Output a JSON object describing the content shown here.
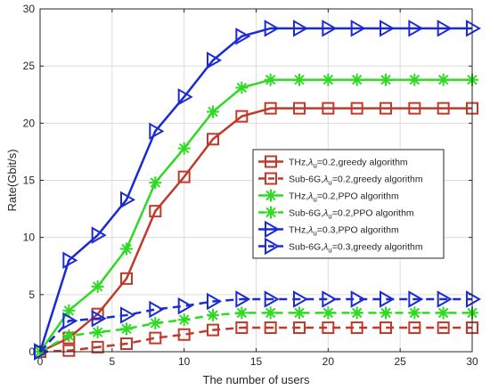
{
  "chart_data": {
    "type": "line",
    "xlabel": "The number of users",
    "ylabel": "Rate(Gbit/s)",
    "xlim": [
      0,
      30
    ],
    "ylim": [
      0,
      30
    ],
    "xticks": [
      "0",
      "5",
      "10",
      "15",
      "20",
      "25",
      "30"
    ],
    "yticks": [
      "0",
      "5",
      "10",
      "15",
      "20",
      "25",
      "30"
    ],
    "grid": true,
    "legend_position": "center-right",
    "x": [
      0,
      2,
      4,
      6,
      8,
      10,
      12,
      14,
      16,
      18,
      20,
      22,
      24,
      26,
      28,
      30
    ],
    "series": [
      {
        "name": "THz,λu=0.2,greedy algorithm",
        "legend": {
          "pre": "THz,",
          "sub": "u",
          "post": "=0.2,greedy algorithm"
        },
        "color": "#c0392b",
        "line_style": "solid",
        "marker": "square",
        "values": [
          0,
          1.2,
          3.3,
          6.4,
          12.3,
          15.3,
          18.6,
          20.6,
          21.3,
          21.3,
          21.3,
          21.3,
          21.3,
          21.3,
          21.3,
          21.3
        ]
      },
      {
        "name": "Sub-6G,λu=0.2,greedy algorithm",
        "legend": {
          "pre": "Sub-6G,",
          "sub": "u",
          "post": "=0.2,greedy algorithm"
        },
        "color": "#c0392b",
        "line_style": "dashed",
        "marker": "square",
        "values": [
          0,
          0.1,
          0.4,
          0.7,
          1.2,
          1.5,
          1.9,
          2.1,
          2.1,
          2.1,
          2.1,
          2.1,
          2.1,
          2.1,
          2.1,
          2.1
        ]
      },
      {
        "name": "THz,λu=0.2,PPO algorithm",
        "legend": {
          "pre": "THz,",
          "sub": "u",
          "post": "=0.2,PPO algorithm"
        },
        "color": "#2edb22",
        "line_style": "solid",
        "marker": "asterisk",
        "values": [
          0,
          3.6,
          5.7,
          9.0,
          14.8,
          17.8,
          21.0,
          23.1,
          23.8,
          23.8,
          23.8,
          23.8,
          23.8,
          23.8,
          23.8,
          23.8
        ]
      },
      {
        "name": "Sub-6G,λu=0.2,PPO algorithm",
        "legend": {
          "pre": "Sub-6G,",
          "sub": "u",
          "post": "=0.2,PPO algorithm"
        },
        "color": "#2edb22",
        "line_style": "dashed",
        "marker": "asterisk",
        "values": [
          0,
          1.4,
          1.7,
          2.0,
          2.5,
          2.8,
          3.2,
          3.4,
          3.4,
          3.4,
          3.4,
          3.4,
          3.4,
          3.4,
          3.4,
          3.4
        ]
      },
      {
        "name": "THz,λu=0.3,PPO algorithm",
        "legend": {
          "pre": "THz,",
          "sub": "u",
          "post": "=0.3,PPO algorithm"
        },
        "color": "#1a2ad6",
        "line_style": "solid",
        "marker": "triangle-right",
        "values": [
          0,
          8.0,
          10.2,
          13.3,
          19.3,
          22.3,
          25.5,
          27.6,
          28.3,
          28.3,
          28.3,
          28.3,
          28.3,
          28.3,
          28.3,
          28.3
        ]
      },
      {
        "name": "Sub-6G,λu=0.3,greedy algorithm",
        "legend": {
          "pre": "Sub-6G,",
          "sub": "u",
          "post": "=0.3,greedy algorithm"
        },
        "color": "#1a2ad6",
        "line_style": "dashed",
        "marker": "triangle-right",
        "values": [
          0,
          2.7,
          2.9,
          3.2,
          3.7,
          4.0,
          4.4,
          4.6,
          4.6,
          4.6,
          4.6,
          4.6,
          4.6,
          4.6,
          4.6,
          4.6
        ]
      }
    ]
  }
}
